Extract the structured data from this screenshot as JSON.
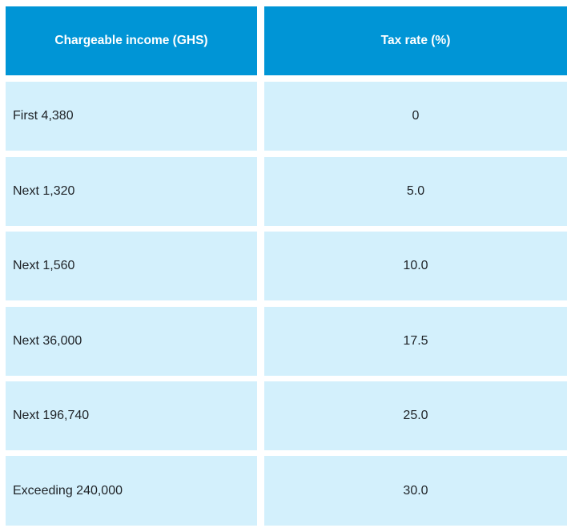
{
  "table": {
    "headers": {
      "income": "Chargeable income (GHS)",
      "rate": "Tax rate (%)"
    },
    "rows": [
      {
        "income": "First 4,380",
        "rate": "0"
      },
      {
        "income": "Next 1,320",
        "rate": "5.0"
      },
      {
        "income": "Next 1,560",
        "rate": "10.0"
      },
      {
        "income": "Next 36,000",
        "rate": "17.5"
      },
      {
        "income": "Next 196,740",
        "rate": "25.0"
      },
      {
        "income": "Exceeding 240,000",
        "rate": "30.0"
      }
    ]
  },
  "colors": {
    "header_bg": "#0095d6",
    "row_bg": "#d3f0fc"
  }
}
